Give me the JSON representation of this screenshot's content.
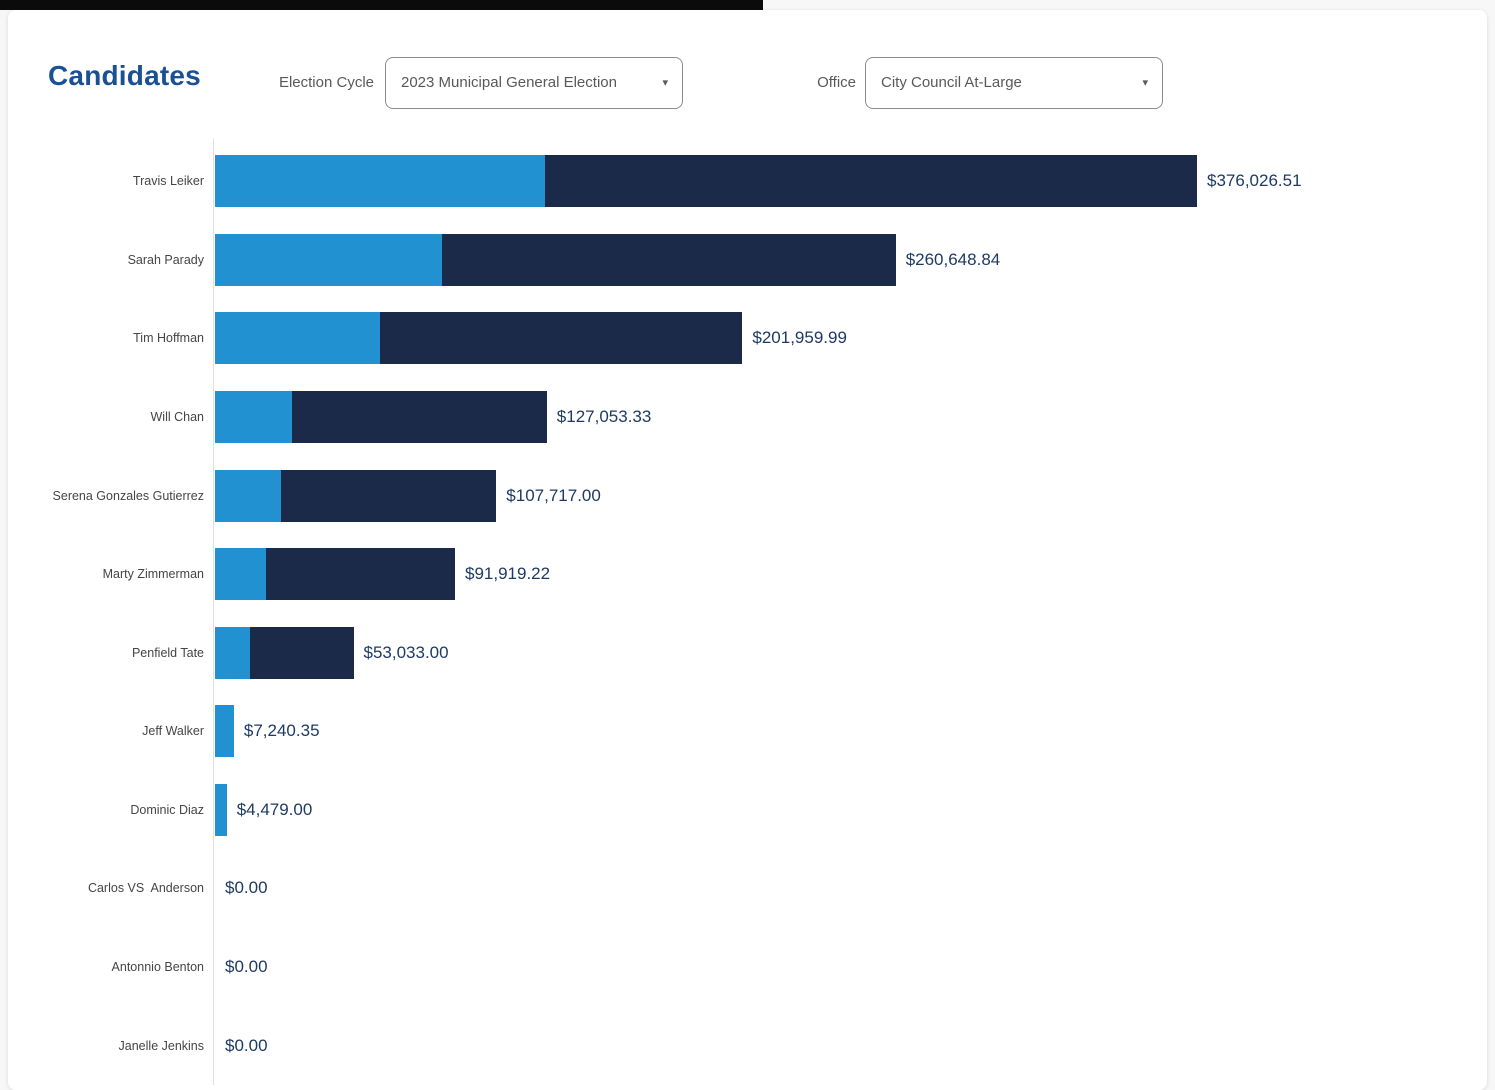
{
  "header": {
    "title": "Candidates",
    "filters": [
      {
        "id": "election-cycle",
        "label": "Election Cycle",
        "value": "2023 Municipal General Election"
      },
      {
        "id": "office",
        "label": "Office",
        "value": "City Council At-Large"
      }
    ]
  },
  "icons": {
    "dropdown_caret": "▾"
  },
  "colors": {
    "title_blue": "#1a5194",
    "bar_light_blue": "#2191d1",
    "bar_dark_navy": "#1b2a48",
    "value_text": "#1e3a63",
    "axis_line": "#e0e0e0"
  },
  "chart_data": {
    "type": "bar",
    "orientation": "horizontal",
    "stacked": true,
    "grid": false,
    "legend": "none",
    "xlabel": "",
    "ylabel": "",
    "xlim": [
      0,
      400000
    ],
    "categories": [
      "Travis Leiker",
      "Sarah Parady",
      "Tim Hoffman",
      "Will Chan",
      "Serena Gonzales Gutierrez",
      "Marty Zimmerman",
      "Penfield Tate",
      "Jeff Walker",
      "Dominic Diaz",
      "Carlos VS  Anderson",
      "Antonnio Benton",
      "Janelle Jenkins"
    ],
    "series": [
      {
        "name": "unlabeled_light_blue_segment",
        "estimated": true,
        "color": "#2191d1",
        "values": [
          126365,
          86925,
          63180,
          29485,
          25275,
          19530,
          13400,
          7240.35,
          4479,
          0,
          0,
          0
        ]
      },
      {
        "name": "unlabeled_dark_navy_segment",
        "estimated": true,
        "color": "#1b2a48",
        "values": [
          249661.51,
          173723.84,
          138779.99,
          97568.33,
          82442.0,
          72389.22,
          39633.0,
          0,
          0,
          0,
          0,
          0
        ]
      }
    ],
    "totals": [
      376026.51,
      260648.84,
      201959.99,
      127053.33,
      107717.0,
      91919.22,
      53033.0,
      7240.35,
      4479.0,
      0,
      0,
      0
    ],
    "total_labels": [
      "$376,026.51",
      "$260,648.84",
      "$201,959.99",
      "$127,053.33",
      "$107,717.00",
      "$91,919.22",
      "$53,033.00",
      "$7,240.35",
      "$4,479.00",
      "$0.00",
      "$0.00",
      "$0.00"
    ]
  }
}
